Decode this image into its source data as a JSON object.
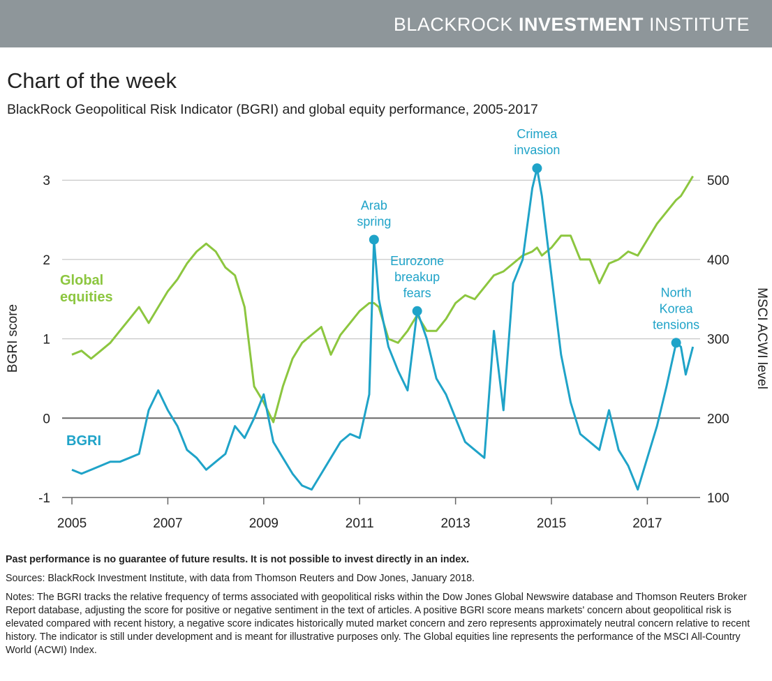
{
  "header": {
    "brand": "BLACKROCK",
    "brand_bold": "INVESTMENT",
    "brand_end": "INSTITUTE"
  },
  "chart_data": {
    "type": "line",
    "title": "Chart of the week",
    "subtitle": "BlackRock Geopolitical Risk Indicator (BGRI) and global equity performance, 2005-2017",
    "y_label": "BGRI score",
    "y2_label": "MSCI ACWI level",
    "xlim": [
      2004.8,
      2018.1
    ],
    "xticks": [
      2005,
      2007,
      2009,
      2011,
      2013,
      2015,
      2017
    ],
    "ylim": [
      -1,
      3.3
    ],
    "yticks": [
      -1,
      0,
      1,
      2,
      3
    ],
    "y2lim": [
      100,
      530
    ],
    "y2ticks": [
      100,
      200,
      300,
      400,
      500
    ],
    "grid": true,
    "x": [
      2005.0,
      2005.2,
      2005.4,
      2005.6,
      2005.8,
      2006.0,
      2006.2,
      2006.4,
      2006.6,
      2006.8,
      2007.0,
      2007.2,
      2007.4,
      2007.6,
      2007.8,
      2008.0,
      2008.2,
      2008.4,
      2008.6,
      2008.8,
      2009.0,
      2009.2,
      2009.4,
      2009.6,
      2009.8,
      2010.0,
      2010.2,
      2010.4,
      2010.6,
      2010.8,
      2011.0,
      2011.2,
      2011.3,
      2011.4,
      2011.6,
      2011.8,
      2012.0,
      2012.2,
      2012.4,
      2012.6,
      2012.8,
      2013.0,
      2013.2,
      2013.4,
      2013.6,
      2013.8,
      2014.0,
      2014.2,
      2014.4,
      2014.6,
      2014.7,
      2014.8,
      2015.0,
      2015.2,
      2015.4,
      2015.6,
      2015.8,
      2016.0,
      2016.2,
      2016.4,
      2016.6,
      2016.8,
      2017.0,
      2017.2,
      2017.4,
      2017.6,
      2017.7,
      2017.8,
      2017.95
    ],
    "series": [
      {
        "name": "BGRI",
        "color": "#1fa3c8",
        "axis": "y",
        "values": [
          -0.65,
          -0.7,
          -0.65,
          -0.6,
          -0.55,
          -0.55,
          -0.5,
          -0.45,
          0.1,
          0.35,
          0.1,
          -0.1,
          -0.4,
          -0.5,
          -0.65,
          -0.55,
          -0.45,
          -0.1,
          -0.25,
          0.0,
          0.3,
          -0.3,
          -0.5,
          -0.7,
          -0.85,
          -0.9,
          -0.7,
          -0.5,
          -0.3,
          -0.2,
          -0.25,
          0.3,
          2.25,
          1.5,
          0.9,
          0.6,
          0.35,
          1.35,
          1.0,
          0.5,
          0.3,
          0.0,
          -0.3,
          -0.4,
          -0.5,
          1.1,
          0.1,
          1.7,
          2.0,
          2.9,
          3.15,
          2.8,
          1.8,
          0.8,
          0.2,
          -0.2,
          -0.3,
          -0.4,
          0.1,
          -0.4,
          -0.6,
          -0.9,
          -0.5,
          -0.1,
          0.4,
          0.95,
          0.9,
          0.55,
          0.9
        ]
      },
      {
        "name": "Global equities",
        "color": "#8cc63f",
        "axis": "y2",
        "values": [
          280,
          285,
          275,
          285,
          295,
          310,
          325,
          340,
          320,
          340,
          360,
          375,
          395,
          410,
          420,
          410,
          390,
          380,
          340,
          240,
          220,
          195,
          240,
          275,
          295,
          305,
          315,
          280,
          305,
          320,
          335,
          345,
          345,
          340,
          300,
          295,
          310,
          330,
          310,
          310,
          325,
          345,
          355,
          350,
          365,
          380,
          385,
          395,
          405,
          410,
          415,
          405,
          415,
          430,
          430,
          400,
          400,
          370,
          395,
          400,
          410,
          405,
          425,
          445,
          460,
          475,
          480,
          490,
          505
        ]
      }
    ],
    "annotations": [
      {
        "text": [
          "Arab",
          "spring"
        ],
        "x": 2011.3,
        "y": 2.25
      },
      {
        "text": [
          "Eurozone",
          "breakup",
          "fears"
        ],
        "x": 2012.2,
        "y": 1.35
      },
      {
        "text": [
          "Crimea",
          "invasion"
        ],
        "x": 2014.7,
        "y": 3.15
      },
      {
        "text": [
          "North",
          "Korea",
          "tensions"
        ],
        "x": 2017.6,
        "y": 0.95
      }
    ]
  },
  "footer": {
    "disclaimer": "Past performance is no guarantee of future results. It is not possible to invest directly in an index.",
    "sources": "Sources: BlackRock Investment Institute, with data from Thomson Reuters and Dow Jones, January 2018.",
    "notes": "Notes: The BGRI tracks the relative frequency of terms associated with geopolitical risks within the Dow Jones Global Newswire database and Thomson Reuters Broker Report database, adjusting the score for positive or negative sentiment in the text of articles. A positive BGRI score means markets' concern about geopolitical risk is elevated compared with recent history, a negative score indicates historically muted market concern and zero represents approximately neutral concern relative to recent history. The indicator is still under development and is meant for illustrative purposes only. The Global equities line represents the performance of the MSCI All-Country World (ACWI) Index."
  }
}
